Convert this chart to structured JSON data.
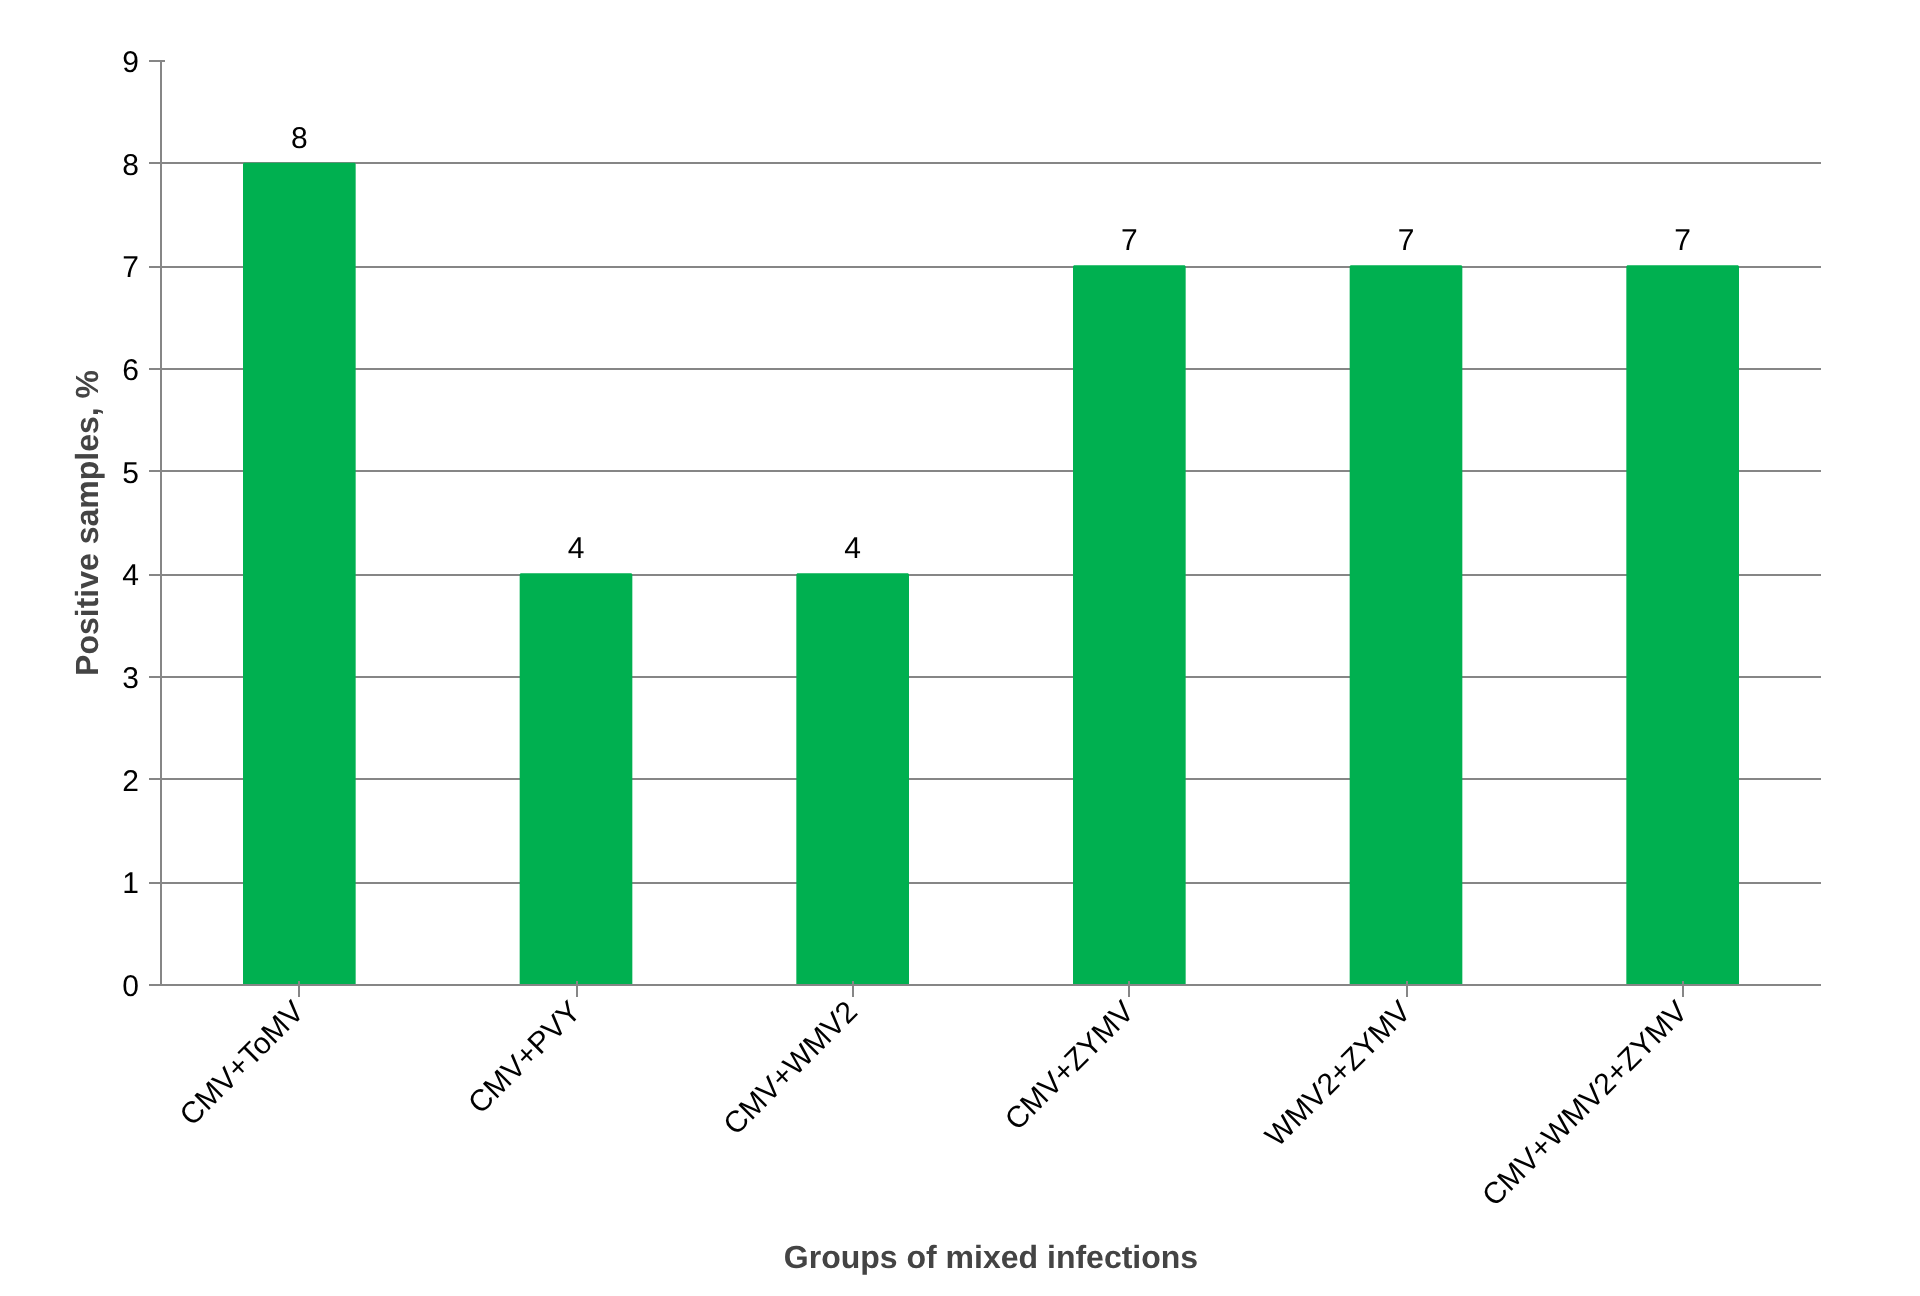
{
  "chart_data": {
    "type": "bar",
    "xlabel": "Groups of mixed infections",
    "ylabel": "Positive samples, %",
    "categories": [
      "CMV+ToMV",
      "CMV+PVY",
      "CMV+WMV2",
      "CMV+ZYMV",
      "WMV2+ZYMV",
      "CMV+WMV2+ZYMV"
    ],
    "values": [
      8,
      4,
      4,
      7,
      7,
      7
    ],
    "color": "#00b050",
    "ylim": [
      0,
      9
    ],
    "yticks": [
      0,
      1,
      2,
      3,
      4,
      5,
      6,
      7,
      8,
      9
    ],
    "grid": "y",
    "data_labels": true
  }
}
